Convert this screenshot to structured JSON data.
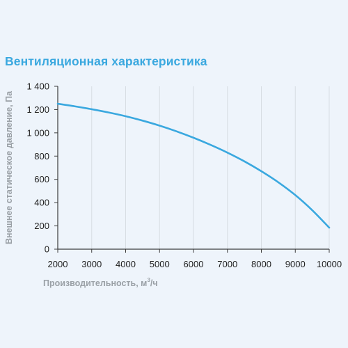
{
  "title": "Вентиляционная характеристика",
  "accent_color": "#3aa8df",
  "chart_data": {
    "type": "line",
    "title": "Вентиляционная характеристика",
    "xlabel_main": "Производительность, м",
    "xlabel_sup": "3",
    "xlabel_tail": "/ч",
    "ylabel": "Внешнее статическое давление, Па",
    "xlim": [
      2000,
      10000
    ],
    "ylim": [
      0,
      1400
    ],
    "x_ticks": [
      2000,
      3000,
      4000,
      5000,
      6000,
      7000,
      8000,
      9000,
      10000
    ],
    "x_tick_labels": [
      "2000",
      "3000",
      "4000",
      "5000",
      "6000",
      "7000",
      "8000",
      "9000",
      "10000"
    ],
    "y_ticks": [
      0,
      200,
      400,
      600,
      800,
      1000,
      1200,
      1400
    ],
    "y_tick_labels": [
      "0",
      "200",
      "400",
      "600",
      "800",
      "1 000",
      "1 200",
      "1 400"
    ],
    "grid": "vertical",
    "series": [
      {
        "color": "#3aa8df",
        "x": [
          2000,
          2500,
          3000,
          3500,
          4000,
          4500,
          5000,
          5500,
          6000,
          6500,
          7000,
          7500,
          8000,
          8500,
          9000,
          9500,
          10000
        ],
        "y": [
          1250,
          1228,
          1203,
          1175,
          1143,
          1105,
          1062,
          1013,
          958,
          897,
          830,
          755,
          670,
          575,
          465,
          335,
          185
        ]
      }
    ]
  }
}
